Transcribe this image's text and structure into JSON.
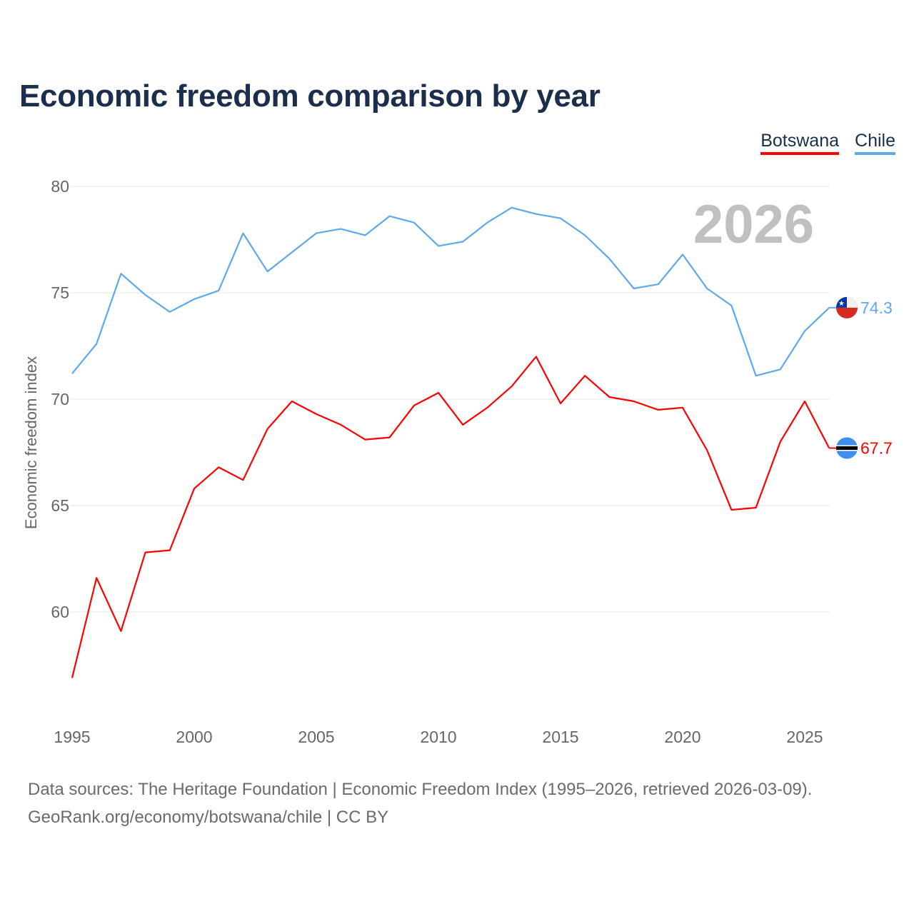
{
  "chart_data": {
    "type": "line",
    "title": "Economic freedom comparison by year",
    "xlabel": "",
    "ylabel": "Economic freedom index",
    "xlim": [
      1995,
      2026
    ],
    "ylim": [
      55,
      80
    ],
    "yticks": [
      60,
      65,
      70,
      75,
      80
    ],
    "xticks": [
      1995,
      2000,
      2005,
      2010,
      2015,
      2020,
      2025
    ],
    "grid": true,
    "legend_position": "top-right",
    "year_label": "2026",
    "x": [
      1995,
      1996,
      1997,
      1998,
      1999,
      2000,
      2001,
      2002,
      2003,
      2004,
      2005,
      2006,
      2007,
      2008,
      2009,
      2010,
      2011,
      2012,
      2013,
      2014,
      2015,
      2016,
      2017,
      2018,
      2019,
      2020,
      2021,
      2022,
      2023,
      2024,
      2025,
      2026
    ],
    "series": [
      {
        "name": "Botswana",
        "color": "#ff0000",
        "end_label": "67.7",
        "values": [
          56.9,
          61.6,
          59.1,
          62.8,
          62.9,
          65.8,
          66.8,
          66.2,
          68.6,
          69.9,
          69.3,
          68.8,
          68.1,
          68.2,
          69.7,
          70.3,
          68.8,
          69.6,
          70.6,
          72.0,
          69.8,
          71.1,
          70.1,
          69.9,
          69.5,
          69.6,
          67.6,
          64.8,
          64.9,
          68.0,
          69.9,
          67.7
        ]
      },
      {
        "name": "Chile",
        "color": "#5ea8ec",
        "end_label": "74.3",
        "values": [
          71.2,
          72.6,
          75.9,
          74.9,
          74.1,
          74.7,
          75.1,
          77.8,
          76.0,
          76.9,
          77.8,
          78.0,
          77.7,
          78.6,
          78.3,
          77.2,
          77.4,
          78.3,
          79.0,
          78.7,
          78.5,
          77.7,
          76.6,
          75.2,
          75.4,
          76.8,
          75.2,
          74.4,
          71.1,
          71.4,
          73.2,
          74.3
        ]
      }
    ]
  },
  "source_line1": "Data sources: The Heritage Foundation | Economic Freedom Index (1995–2026, retrieved 2026-03-09).",
  "source_line2": "GeoRank.org/economy/botswana/chile | CC BY"
}
